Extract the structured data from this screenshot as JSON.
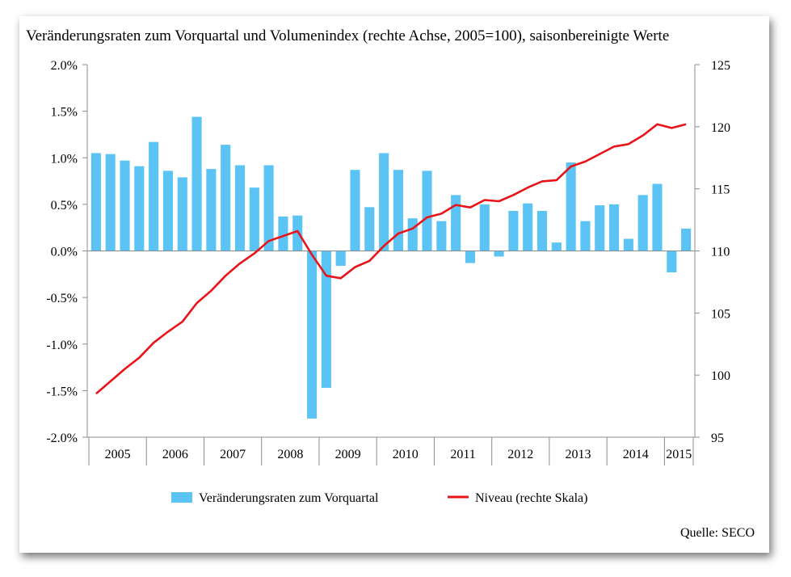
{
  "chart_data": {
    "type": "bar+line",
    "title": "Veränderungsraten zum Vorquartal und Volumenindex (rechte Achse, 2005=100), saisonbereinigte Werte",
    "source": "Quelle: SECO",
    "left_axis": {
      "ylim": [
        -2.0,
        2.0
      ],
      "ticks": [
        "-2.0%",
        "-1.5%",
        "-1.0%",
        "-0.5%",
        "0.0%",
        "0.5%",
        "1.0%",
        "1.5%",
        "2.0%"
      ]
    },
    "right_axis": {
      "ylim": [
        95,
        125
      ],
      "ticks": [
        "95",
        "100",
        "105",
        "110",
        "115",
        "120",
        "125"
      ]
    },
    "years": [
      "2005",
      "2006",
      "2007",
      "2008",
      "2009",
      "2010",
      "2011",
      "2012",
      "2013",
      "2014",
      "2015"
    ],
    "quarters_per_year": 4,
    "quarters_last_year": 2,
    "series": [
      {
        "name": "Veränderungsraten zum Vorquartal",
        "kind": "bar",
        "axis": "left",
        "color": "#5bc4f5",
        "values": [
          1.05,
          1.04,
          0.97,
          0.91,
          1.17,
          0.86,
          0.79,
          1.44,
          0.88,
          1.14,
          0.92,
          0.68,
          0.92,
          0.37,
          0.38,
          -1.8,
          -1.47,
          -0.16,
          0.87,
          0.47,
          1.05,
          0.87,
          0.35,
          0.86,
          0.32,
          0.6,
          -0.13,
          0.5,
          -0.06,
          0.43,
          0.51,
          0.43,
          0.09,
          0.95,
          0.32,
          0.49,
          0.5,
          0.13,
          0.6,
          0.72,
          -0.23,
          0.24
        ]
      },
      {
        "name": "Niveau (rechte Skala)",
        "kind": "line",
        "axis": "right",
        "color": "#e8141a",
        "values": [
          98.5,
          99.5,
          100.5,
          101.4,
          102.6,
          103.5,
          104.3,
          105.8,
          106.8,
          108.0,
          109.0,
          109.8,
          110.8,
          111.2,
          111.6,
          109.7,
          108.0,
          107.8,
          108.7,
          109.2,
          110.4,
          111.4,
          111.8,
          112.7,
          113.0,
          113.7,
          113.5,
          114.1,
          114.0,
          114.5,
          115.1,
          115.6,
          115.7,
          116.8,
          117.2,
          117.8,
          118.4,
          118.6,
          119.3,
          120.2,
          119.9,
          120.2
        ]
      }
    ],
    "legend_placement": "bottom",
    "grid": "none"
  }
}
